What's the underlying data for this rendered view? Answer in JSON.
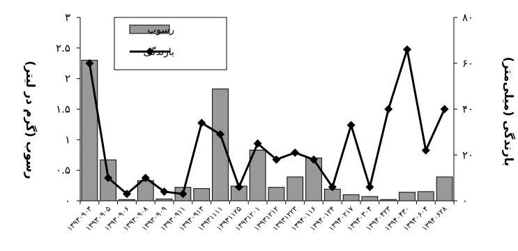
{
  "chart_data": {
    "type": "bar+line",
    "categories": [
      "۱۳۹۳۰۹۰۳",
      "۱۳۹۳۰۹۰۵",
      "۱۳۹۳۰۹۰۶",
      "۱۳۹۳۰۹۰۸",
      "۱۳۹۳۰۹۰۹",
      "۱۳۹۳۰۹۱۱",
      "۱۳۹۳۰۹۱۳",
      "۱۳۹۳۱۱۱۱",
      "۱۳۹۳۱۱۲۵",
      "۱۳۹۳۱۲۰۱",
      "۱۳۹۳۱۲۱۲",
      "۱۳۹۳۱۲۲۳",
      "۱۳۹۴۰۱۱۶",
      "۱۳۹۴۰۱۲۴",
      "۱۳۹۴۰۲۱۷",
      "۱۳۹۴۰۳۰۴",
      "۱۳۹۴۰۴۲۳",
      "۱۳۹۴۰۴۳۰",
      "۱۳۹۴۰۶۰۴",
      "۱۳۹۴۰۶۲۸"
    ],
    "series": [
      {
        "name": "رسوب",
        "kind": "bar",
        "axis": "left",
        "color": "#999999",
        "values": [
          2.3,
          0.67,
          0.02,
          0.33,
          0.03,
          0.22,
          0.2,
          1.83,
          0.24,
          0.83,
          0.22,
          0.39,
          0.7,
          0.19,
          0.1,
          0.07,
          0.02,
          0.14,
          0.15,
          0.39
        ]
      },
      {
        "name": "بارندگی",
        "kind": "line",
        "axis": "right",
        "color": "#000000",
        "values": [
          60,
          10,
          3,
          10,
          4,
          3,
          34,
          29,
          6,
          25,
          18,
          21,
          18,
          6,
          33,
          6,
          40,
          66,
          22,
          40
        ]
      }
    ],
    "y_left": {
      "label": "رسوب (گرم در لیتر)",
      "range": [
        0,
        3
      ],
      "ticks": [
        0,
        0.5,
        1,
        1.5,
        2,
        2.5,
        3
      ],
      "tick_labels": [
        "۰",
        "۰.۵",
        "۱",
        "۱.۵",
        "۲",
        "۲.۵",
        "۳"
      ]
    },
    "y_right": {
      "label": "بارندگی (میلی‌متر)",
      "range": [
        0,
        80
      ],
      "ticks": [
        0,
        20,
        40,
        60,
        80
      ],
      "tick_labels": [
        "۰",
        "۲۰",
        "۴۰",
        "۶۰",
        "۸۰"
      ]
    },
    "grid": false,
    "legend": "top-left"
  }
}
